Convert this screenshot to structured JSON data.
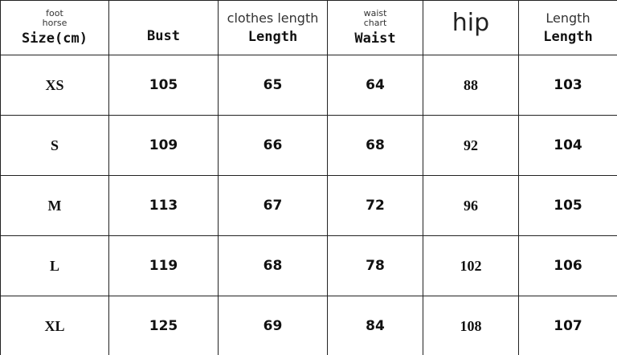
{
  "headers": [
    {
      "small": "foot\nhorse",
      "main": "Size(cm)"
    },
    {
      "small": "",
      "main": "Bust"
    },
    {
      "small": "clothes length",
      "main": "Length"
    },
    {
      "small": "waist\nchart",
      "main": "Waist"
    },
    {
      "small": "hip",
      "main": ""
    },
    {
      "small": "Length",
      "main": "Length"
    }
  ],
  "rows": [
    [
      "XS",
      "105",
      "65",
      "64",
      "88",
      "103"
    ],
    [
      "S",
      "109",
      "66",
      "68",
      "92",
      "104"
    ],
    [
      "M",
      "113",
      "67",
      "72",
      "96",
      "105"
    ],
    [
      "L",
      "119",
      "68",
      "78",
      "102",
      "106"
    ],
    [
      "XL",
      "125",
      "69",
      "84",
      "108",
      "107"
    ]
  ]
}
